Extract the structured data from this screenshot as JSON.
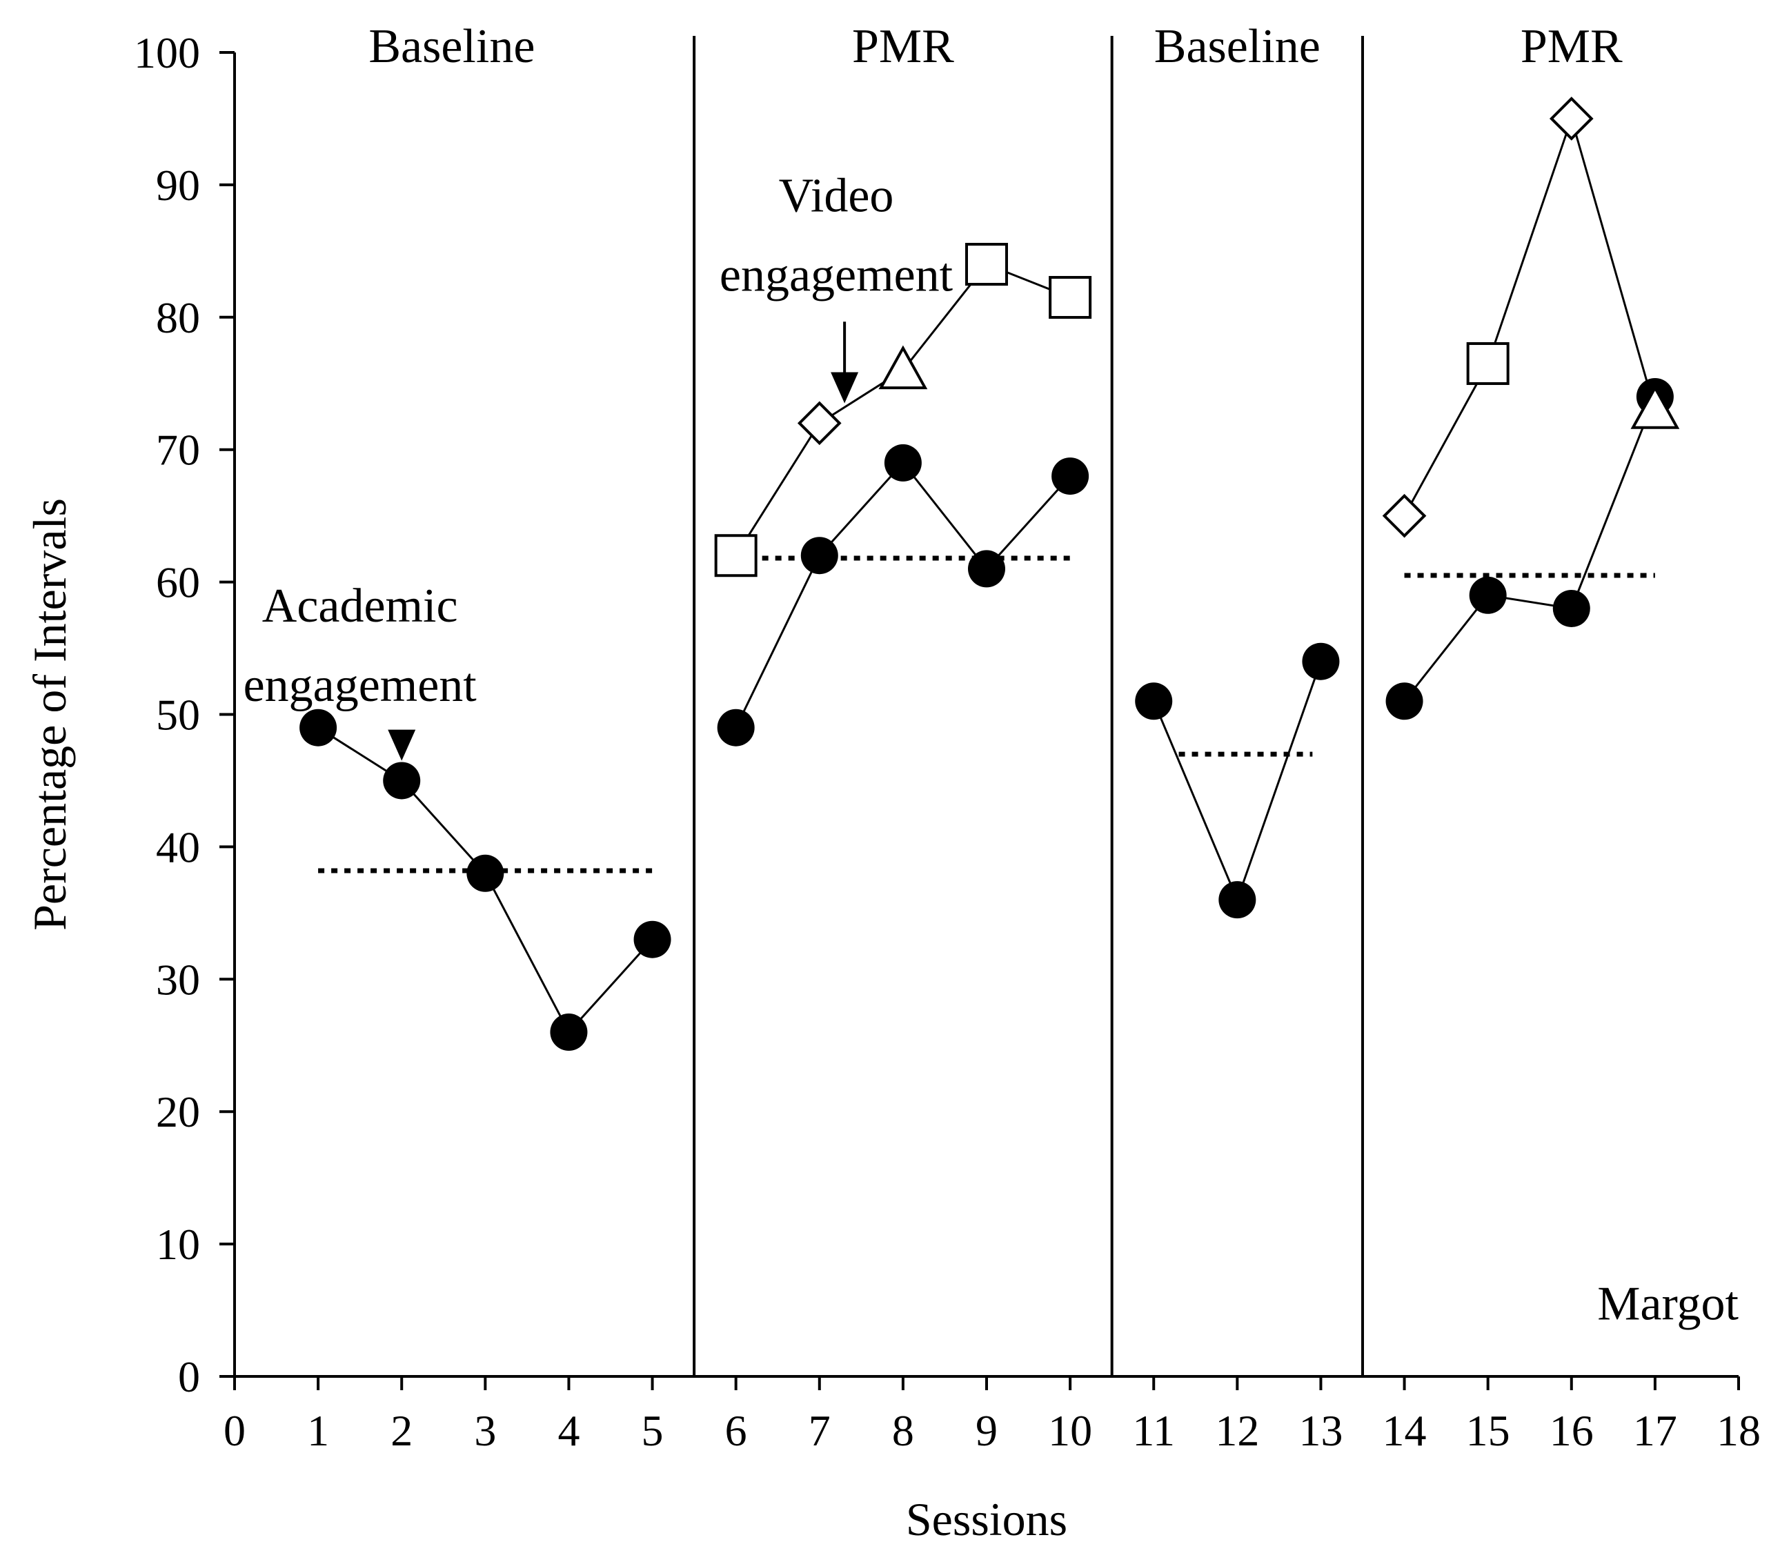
{
  "chart_data": {
    "type": "line",
    "title": "",
    "xlabel": "Sessions",
    "ylabel": "Percentage of Intervals",
    "xlim": [
      0,
      18
    ],
    "ylim": [
      0,
      100
    ],
    "x_ticks": [
      0,
      1,
      2,
      3,
      4,
      5,
      6,
      7,
      8,
      9,
      10,
      11,
      12,
      13,
      14,
      15,
      16,
      17,
      18
    ],
    "y_ticks": [
      0,
      10,
      20,
      30,
      40,
      50,
      60,
      70,
      80,
      90,
      100
    ],
    "grid": false,
    "participant": "Margot",
    "phase_lines": [
      5.5,
      10.5,
      13.5
    ],
    "phases": [
      {
        "label": "Baseline",
        "center": 2.6
      },
      {
        "label": "PMR",
        "center": 8.0
      },
      {
        "label": "Baseline",
        "center": 12.0
      },
      {
        "label": "PMR",
        "center": 16.0
      }
    ],
    "series": [
      {
        "marker": "filled-circle",
        "segments": [
          [
            [
              1,
              49
            ],
            [
              2,
              45
            ],
            [
              3,
              38
            ],
            [
              4,
              26
            ],
            [
              5,
              33
            ]
          ],
          [
            [
              6,
              49
            ],
            [
              7,
              62
            ],
            [
              8,
              69
            ],
            [
              9,
              61
            ],
            [
              10,
              68
            ]
          ],
          [
            [
              11,
              51
            ],
            [
              12,
              36
            ],
            [
              13,
              54
            ]
          ],
          [
            [
              14,
              51
            ],
            [
              15,
              59
            ],
            [
              16,
              58
            ],
            [
              17,
              74
            ]
          ]
        ]
      },
      {
        "marker": "mixed-open",
        "segments": [
          [
            [
              6,
              62,
              "square"
            ],
            [
              7,
              72,
              "diamond"
            ],
            [
              8,
              76,
              "triangle"
            ],
            [
              9,
              84,
              "square"
            ],
            [
              10,
              81.5,
              "square"
            ]
          ],
          [
            [
              14,
              65,
              "diamond"
            ],
            [
              15,
              76.5,
              "square"
            ],
            [
              16,
              95,
              "diamond"
            ],
            [
              17,
              73,
              "triangle"
            ]
          ]
        ]
      }
    ],
    "phase_means": [
      {
        "x_start": 1.0,
        "x_end": 5.0,
        "y": 38.2
      },
      {
        "x_start": 6.0,
        "x_end": 10.0,
        "y": 61.8
      },
      {
        "x_start": 11.3,
        "x_end": 12.9,
        "y": 47.0
      },
      {
        "x_start": 14.0,
        "x_end": 17.0,
        "y": 60.5
      }
    ],
    "annotations": [
      {
        "lines": [
          "Academic",
          "engagement"
        ],
        "x": 1.5,
        "y": 57,
        "arrow_to": [
          2,
          46.5
        ]
      },
      {
        "lines": [
          "Video",
          "engagement"
        ],
        "x": 7.2,
        "y": 88,
        "arrow_to": [
          7.3,
          73.5
        ]
      }
    ]
  }
}
